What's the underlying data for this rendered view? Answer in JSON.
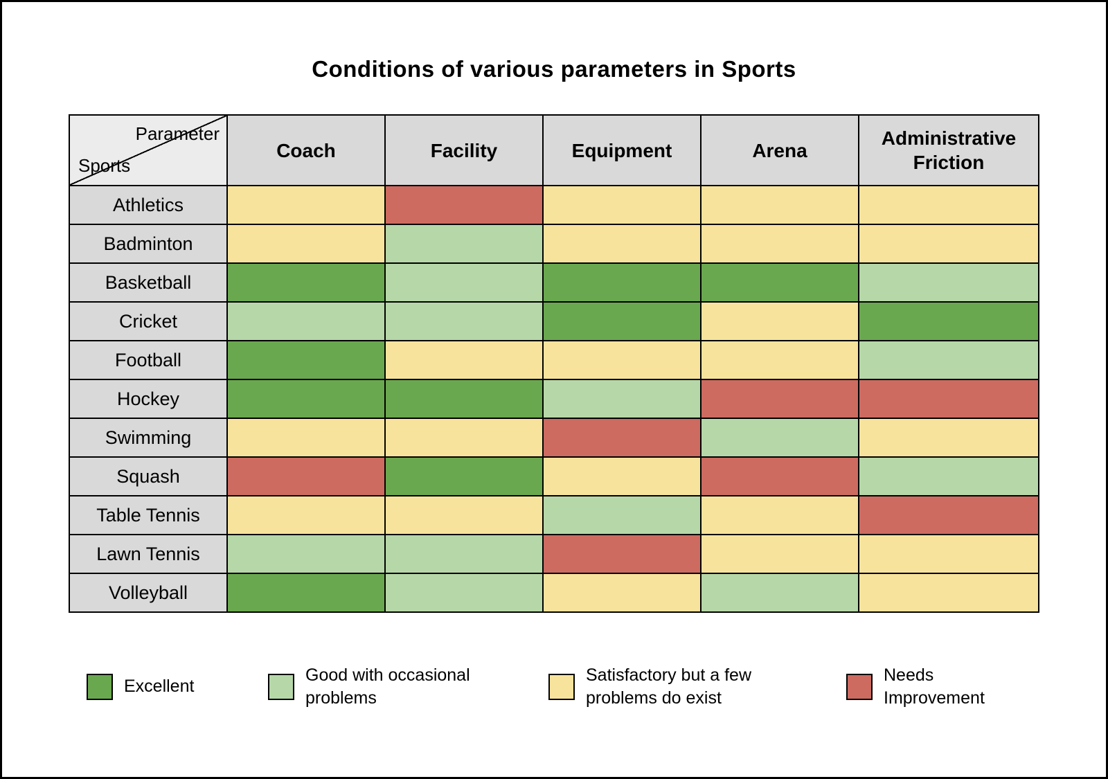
{
  "title": "Conditions of various parameters in Sports",
  "corner": {
    "top": "Parameter",
    "bottom": "Sports"
  },
  "colors": {
    "excellent": "#6aa84f",
    "good": "#b6d7a8",
    "satisfactory": "#f8e39c",
    "needs": "#cd6b61",
    "header_bg": "#d9d9d9",
    "corner_bg": "#ececec",
    "border": "#000000"
  },
  "legend": [
    {
      "key": "excellent",
      "label": "Excellent"
    },
    {
      "key": "good",
      "label": "Good with occasional problems"
    },
    {
      "key": "satisfactory",
      "label": "Satisfactory but a few problems do exist"
    },
    {
      "key": "needs",
      "label": "Needs Improvement"
    }
  ],
  "chart_data": {
    "type": "heatmap",
    "title": "Conditions of various parameters in Sports",
    "columns": [
      "Coach",
      "Facility",
      "Equipment",
      "Arena",
      "Administrative Friction"
    ],
    "rows": [
      "Athletics",
      "Badminton",
      "Basketball",
      "Cricket",
      "Football",
      "Hockey",
      "Swimming",
      "Squash",
      "Table Tennis",
      "Lawn Tennis",
      "Volleyball"
    ],
    "legend_labels": {
      "excellent": "Excellent",
      "good": "Good with occasional problems",
      "satisfactory": "Satisfactory but a few problems do exist",
      "needs": "Needs Improvement"
    },
    "values": [
      [
        "satisfactory",
        "needs",
        "satisfactory",
        "satisfactory",
        "satisfactory"
      ],
      [
        "satisfactory",
        "good",
        "satisfactory",
        "satisfactory",
        "satisfactory"
      ],
      [
        "excellent",
        "good",
        "excellent",
        "excellent",
        "good"
      ],
      [
        "good",
        "good",
        "excellent",
        "satisfactory",
        "excellent"
      ],
      [
        "excellent",
        "satisfactory",
        "satisfactory",
        "satisfactory",
        "good"
      ],
      [
        "excellent",
        "excellent",
        "good",
        "needs",
        "needs"
      ],
      [
        "satisfactory",
        "satisfactory",
        "needs",
        "good",
        "satisfactory"
      ],
      [
        "needs",
        "excellent",
        "satisfactory",
        "needs",
        "good"
      ],
      [
        "satisfactory",
        "satisfactory",
        "good",
        "satisfactory",
        "needs"
      ],
      [
        "good",
        "good",
        "needs",
        "satisfactory",
        "satisfactory"
      ],
      [
        "excellent",
        "good",
        "satisfactory",
        "good",
        "satisfactory"
      ]
    ]
  }
}
